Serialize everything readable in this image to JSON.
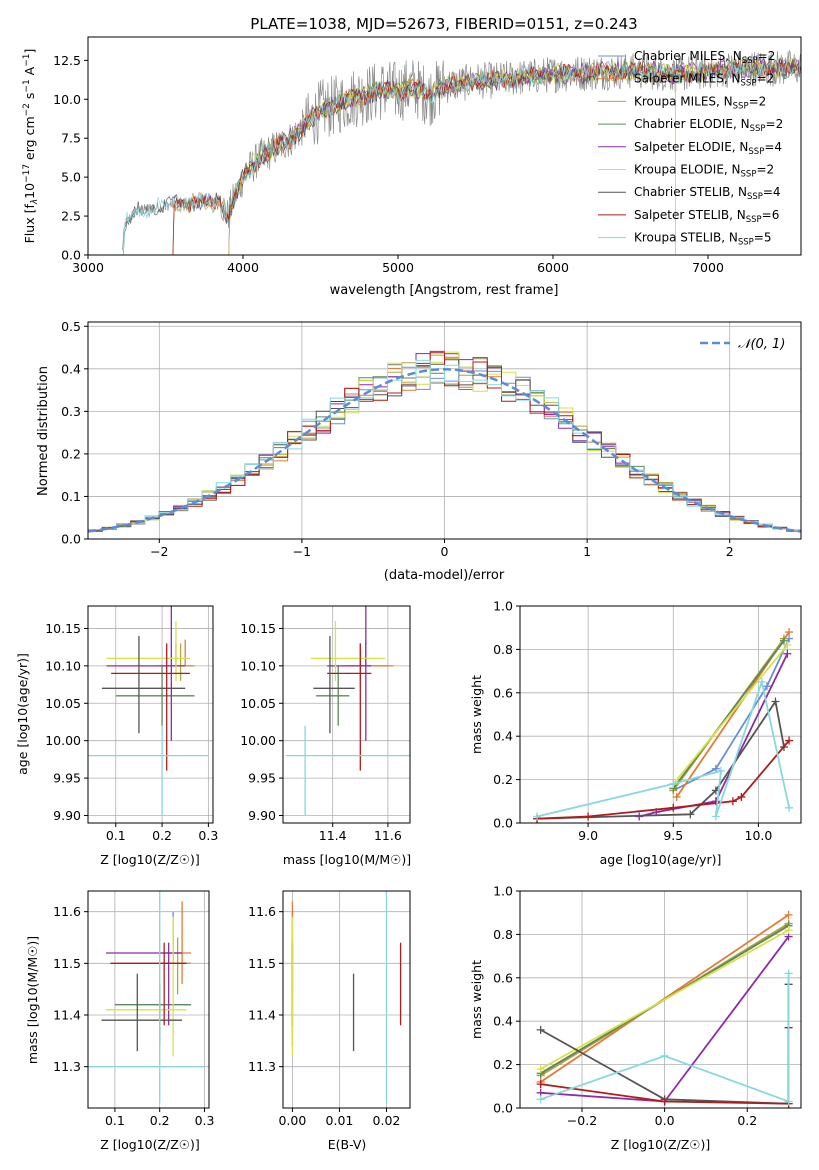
{
  "figure_title": "PLATE=1038, MJD=52673, FIBERID=0151, z=0.243",
  "models": [
    {
      "label": "Chabrier MILES, N",
      "sub": "SSP",
      "n": "=2",
      "color": "#6a8fd6",
      "age": 10.1,
      "age_err": [
        0.0,
        0.03
      ],
      "Z": 0.23,
      "Z_err": [
        0.03,
        0.02
      ],
      "mass": 11.52,
      "mass_err": [
        0.02,
        0.08
      ],
      "ebv": 0.0
    },
    {
      "label": "Salpeter MILES, N",
      "sub": "SSP",
      "n": "=2",
      "color": "#e07b39",
      "age": 10.1,
      "age_err": [
        0.0,
        0.035
      ],
      "Z": 0.25,
      "Z_err": [
        0.04,
        0.02
      ],
      "mass": 11.52,
      "mass_err": [
        0.06,
        0.1
      ],
      "ebv": 0.0
    },
    {
      "label": "Kroupa MILES, N",
      "sub": "SSP",
      "n": "=2",
      "color": "#b5a33a",
      "age": 10.1,
      "age_err": [
        0.02,
        0.03
      ],
      "Z": 0.24,
      "Z_err": [
        0.05,
        0.03
      ],
      "mass": 11.5,
      "mass_err": [
        0.06,
        0.05
      ],
      "ebv": 0.0
    },
    {
      "label": "Chabrier ELODIE, N",
      "sub": "SSP",
      "n": "=2",
      "color": "#5a8a5a",
      "age": 10.06,
      "age_err": [
        0.04,
        0.04
      ],
      "Z": 0.2,
      "Z_err": [
        0.1,
        0.07
      ],
      "mass": 11.42,
      "mass_err": [
        0.08,
        0.04
      ],
      "ebv": 0.0
    },
    {
      "label": "Salpeter ELODIE, N",
      "sub": "SSP",
      "n": "=4",
      "color": "#8e2aa8",
      "age": 10.1,
      "age_err": [
        0.1,
        0.1
      ],
      "Z": 0.22,
      "Z_err": [
        0.14,
        0.03
      ],
      "mass": 11.52,
      "mass_err": [
        0.14,
        0.02
      ],
      "ebv": 0.0
    },
    {
      "label": "Kroupa ELODIE, N",
      "sub": "SSP",
      "n": "=2",
      "color": "#d9e04a",
      "age": 10.11,
      "age_err": [
        0.03,
        0.05
      ],
      "Z": 0.23,
      "Z_err": [
        0.15,
        0.03
      ],
      "mass": 11.41,
      "mass_err": [
        0.09,
        0.18
      ],
      "ebv": 0.0
    },
    {
      "label": "Chabrier STELIB, N",
      "sub": "SSP",
      "n": "=4",
      "color": "#555555",
      "age": 10.07,
      "age_err": [
        0.06,
        0.07
      ],
      "Z": 0.15,
      "Z_err": [
        0.08,
        0.1
      ],
      "mass": 11.39,
      "mass_err": [
        0.06,
        0.09
      ],
      "ebv": 0.013
    },
    {
      "label": "Salpeter STELIB, N",
      "sub": "SSP",
      "n": "=6",
      "color": "#b01c1c",
      "age": 10.09,
      "age_err": [
        0.13,
        0.04
      ],
      "Z": 0.21,
      "Z_err": [
        0.12,
        0.05
      ],
      "mass": 11.5,
      "mass_err": [
        0.12,
        0.04
      ],
      "ebv": 0.023
    },
    {
      "label": "Kroupa STELIB, N",
      "sub": "SSP",
      "n": "=5",
      "color": "#87d8de",
      "age": 9.98,
      "age_err": [
        0.08,
        0.04
      ],
      "Z": 0.2,
      "Z_err": [
        0.16,
        0.1
      ],
      "mass": 11.3,
      "mass_err": [
        0.07,
        0.4
      ],
      "ebv": 0.02
    }
  ],
  "panels": {
    "spectrum": {
      "xlabel": "wavelength [Angstrom, rest frame]",
      "ylabel_parts": [
        "Flux [f",
        "λ",
        "10",
        "−17",
        " erg cm",
        "−2",
        " s",
        "−1",
        " A",
        "−1",
        "]"
      ]
    },
    "residuals": {
      "xlabel": "(data-model)/error",
      "ylabel": "Normed distribution",
      "legend": "𝒩(0, 1)"
    },
    "age_Z": {
      "xlabel": "Z [log10(Z/Z☉)]",
      "ylabel": "age  [log10(age/yr)]"
    },
    "age_mass": {
      "xlabel": "mass [log10(M/M☉)]"
    },
    "mw_age": {
      "xlabel": "age  [log10(age/yr)]",
      "ylabel": "mass weight"
    },
    "mass_Z": {
      "xlabel": "Z [log10(Z/Z☉)]",
      "ylabel": "mass [log10(M/M☉)]"
    },
    "mass_ebv": {
      "xlabel": "E(B-V)"
    },
    "mw_Z": {
      "xlabel": "Z [log10(Z/Z☉)]",
      "ylabel": "mass weight"
    }
  },
  "chart_data": [
    {
      "type": "line",
      "title": "PLATE=1038, MJD=52673, FIBERID=0151, z=0.243",
      "xlabel": "wavelength [Angstrom, rest frame]",
      "ylabel": "Flux [fλ 10^-17 erg cm^-2 s^-1 A^-1]",
      "xlim": [
        3000,
        7600
      ],
      "ylim": [
        0,
        14
      ],
      "xticks": [
        3000,
        4000,
        5000,
        6000,
        7000
      ],
      "yticks": [
        0.0,
        2.5,
        5.0,
        7.5,
        10.0,
        12.5
      ],
      "anchors": [
        [
          3220,
          0.2
        ],
        [
          3240,
          2.0
        ],
        [
          3300,
          2.7
        ],
        [
          3400,
          3.0
        ],
        [
          3500,
          3.2
        ],
        [
          3600,
          3.3
        ],
        [
          3700,
          3.4
        ],
        [
          3800,
          3.3
        ],
        [
          3850,
          3.6
        ],
        [
          3900,
          2.5
        ],
        [
          3950,
          3.8
        ],
        [
          4000,
          5.0
        ],
        [
          4100,
          6.2
        ],
        [
          4200,
          6.8
        ],
        [
          4300,
          7.4
        ],
        [
          4400,
          8.3
        ],
        [
          4500,
          9.3
        ],
        [
          4600,
          9.6
        ],
        [
          4700,
          10.1
        ],
        [
          4800,
          10.3
        ],
        [
          4900,
          10.6
        ],
        [
          5000,
          10.5
        ],
        [
          5100,
          10.8
        ],
        [
          5200,
          10.2
        ],
        [
          5300,
          10.9
        ],
        [
          5400,
          11.0
        ],
        [
          5500,
          11.2
        ],
        [
          5600,
          11.2
        ],
        [
          5800,
          11.4
        ],
        [
          6000,
          11.6
        ],
        [
          6200,
          11.7
        ],
        [
          6400,
          11.8
        ],
        [
          6600,
          11.8
        ],
        [
          6800,
          11.6
        ],
        [
          7000,
          11.8
        ],
        [
          7200,
          12.0
        ],
        [
          7600,
          12.0
        ]
      ]
    },
    {
      "type": "histogram",
      "xlabel": "(data-model)/error",
      "ylabel": "Normed distribution",
      "xlim": [
        -2.5,
        2.5
      ],
      "ylim": [
        0,
        0.51
      ],
      "xticks": [
        -2,
        -1,
        0,
        1,
        2
      ],
      "yticks": [
        0.0,
        0.1,
        0.2,
        0.3,
        0.4,
        0.5
      ],
      "reference": "N(0,1)",
      "bin_width": 0.1
    },
    {
      "type": "scatter",
      "xlabel": "Z [log10(Z/Z☉)]",
      "ylabel": "age  [log10(age/yr)]",
      "xlim": [
        0.04,
        0.31
      ],
      "ylim": [
        9.89,
        10.18
      ],
      "xticks": [
        0.1,
        0.2,
        0.3
      ],
      "yticks": [
        9.9,
        9.95,
        10.0,
        10.05,
        10.1,
        10.15
      ]
    },
    {
      "type": "scatter",
      "xlabel": "mass [log10(M/M☉)]",
      "xlim": [
        11.22,
        11.68
      ],
      "ylim": [
        9.89,
        10.18
      ],
      "xticks": [
        11.4,
        11.6
      ],
      "yticks": [
        9.9,
        9.95,
        10.0,
        10.05,
        10.1,
        10.15
      ]
    },
    {
      "type": "line",
      "xlabel": "age  [log10(age/yr)]",
      "ylabel": "mass weight",
      "xlim": [
        8.6,
        10.25
      ],
      "ylim": [
        0,
        1
      ],
      "xticks": [
        9.0,
        9.5,
        10.0
      ],
      "yticks": [
        0.0,
        0.2,
        0.4,
        0.6,
        0.8,
        1.0
      ],
      "series": [
        {
          "model": 0,
          "points": [
            [
              9.5,
              0.15
            ],
            [
              9.75,
              0.25
            ],
            [
              10.05,
              0.63
            ],
            [
              10.18,
              0.85
            ]
          ]
        },
        {
          "model": 1,
          "points": [
            [
              9.52,
              0.12
            ],
            [
              10.18,
              0.88
            ]
          ]
        },
        {
          "model": 2,
          "points": [
            [
              9.5,
              0.15
            ],
            [
              10.15,
              0.85
            ]
          ]
        },
        {
          "model": 3,
          "points": [
            [
              9.5,
              0.16
            ],
            [
              10.15,
              0.84
            ]
          ]
        },
        {
          "model": 4,
          "points": [
            [
              9.3,
              0.03
            ],
            [
              9.4,
              0.05
            ],
            [
              9.75,
              0.1
            ],
            [
              10.17,
              0.78
            ]
          ]
        },
        {
          "model": 5,
          "points": [
            [
              9.5,
              0.18
            ],
            [
              10.17,
              0.82
            ]
          ]
        },
        {
          "model": 6,
          "points": [
            [
              8.7,
              0.02
            ],
            [
              9.6,
              0.04
            ],
            [
              9.75,
              0.15
            ],
            [
              10.1,
              0.56
            ],
            [
              10.15,
              0.35
            ]
          ]
        },
        {
          "model": 7,
          "points": [
            [
              8.7,
              0.02
            ],
            [
              9.0,
              0.03
            ],
            [
              9.5,
              0.07
            ],
            [
              9.85,
              0.1
            ],
            [
              9.9,
              0.12
            ],
            [
              10.18,
              0.38
            ]
          ]
        },
        {
          "model": 8,
          "points": [
            [
              8.7,
              0.03
            ],
            [
              9.5,
              0.18
            ],
            [
              9.78,
              0.24
            ],
            [
              9.75,
              0.03
            ],
            [
              10.02,
              0.65
            ],
            [
              10.18,
              0.07
            ]
          ]
        }
      ]
    },
    {
      "type": "scatter",
      "xlabel": "Z [log10(Z/Z☉)]",
      "ylabel": "mass [log10(M/M☉)]",
      "xlim": [
        0.04,
        0.31
      ],
      "ylim": [
        11.22,
        11.64
      ],
      "xticks": [
        0.1,
        0.2,
        0.3
      ],
      "yticks": [
        11.3,
        11.4,
        11.5,
        11.6
      ]
    },
    {
      "type": "scatter",
      "xlabel": "E(B-V)",
      "xlim": [
        -0.002,
        0.025
      ],
      "ylim": [
        11.22,
        11.64
      ],
      "xticks": [
        0.0,
        0.01,
        0.02
      ],
      "yticks": [
        11.3,
        11.4,
        11.5,
        11.6
      ]
    },
    {
      "type": "line",
      "xlabel": "Z [log10(Z/Z☉)]",
      "ylabel": "mass weight",
      "xlim": [
        -0.35,
        0.33
      ],
      "ylim": [
        0,
        1
      ],
      "xticks": [
        -0.2,
        0.0,
        0.2
      ],
      "yticks": [
        0.0,
        0.2,
        0.4,
        0.6,
        0.8,
        1.0
      ],
      "series": [
        {
          "model": 0,
          "points": [
            [
              -0.3,
              0.15
            ],
            [
              0.3,
              0.85
            ]
          ]
        },
        {
          "model": 1,
          "points": [
            [
              -0.3,
              0.12
            ],
            [
              0.3,
              0.89
            ]
          ]
        },
        {
          "model": 2,
          "points": [
            [
              -0.3,
              0.15
            ],
            [
              0.3,
              0.85
            ]
          ]
        },
        {
          "model": 3,
          "points": [
            [
              -0.3,
              0.16
            ],
            [
              0.3,
              0.84
            ]
          ]
        },
        {
          "model": 4,
          "points": [
            [
              -0.3,
              0.07
            ],
            [
              0.0,
              0.03
            ],
            [
              0.3,
              0.79
            ]
          ]
        },
        {
          "model": 5,
          "points": [
            [
              -0.3,
              0.18
            ],
            [
              0.3,
              0.82
            ]
          ]
        },
        {
          "model": 6,
          "points": [
            [
              -0.3,
              0.36
            ],
            [
              0.0,
              0.04
            ],
            [
              0.3,
              0.02
            ],
            [
              0.3,
              0.57
            ]
          ]
        },
        {
          "model": 7,
          "points": [
            [
              -0.3,
              0.11
            ],
            [
              0.0,
              0.03
            ],
            [
              0.3,
              0.02
            ],
            [
              0.3,
              0.37
            ]
          ]
        },
        {
          "model": 8,
          "points": [
            [
              -0.3,
              0.04
            ],
            [
              0.0,
              0.24
            ],
            [
              0.3,
              0.03
            ],
            [
              0.3,
              0.62
            ]
          ]
        }
      ]
    }
  ]
}
